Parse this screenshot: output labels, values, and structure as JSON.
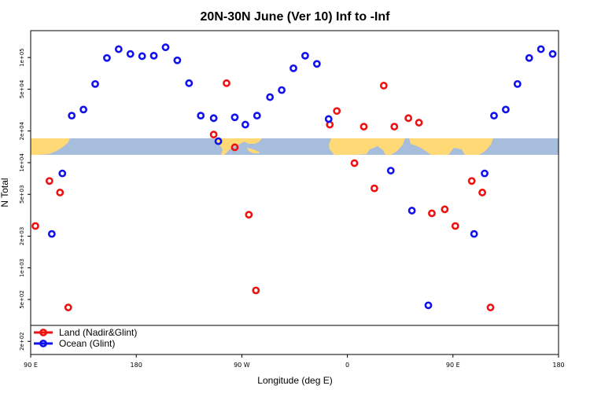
{
  "chart_data": {
    "type": "scatter",
    "title": "20N-30N June (Ver 10)   Inf to -Inf",
    "xlabel": "Longitude (deg E)",
    "ylabel": "N Total",
    "x_scale": "linear",
    "y_scale": "log",
    "xlim": [
      90,
      540
    ],
    "ylim": [
      150,
      180000
    ],
    "x_ticks": [
      {
        "value": 90,
        "label": "90 E"
      },
      {
        "value": 180,
        "label": "180"
      },
      {
        "value": 270,
        "label": "90 W"
      },
      {
        "value": 360,
        "label": "0"
      },
      {
        "value": 450,
        "label": "90 E"
      },
      {
        "value": 540,
        "label": "180"
      }
    ],
    "y_ticks": [
      {
        "value": 200,
        "label": "2e+02"
      },
      {
        "value": 500,
        "label": "5e+02"
      },
      {
        "value": 1000,
        "label": "1e+03"
      },
      {
        "value": 2000,
        "label": "2e+03"
      },
      {
        "value": 5000,
        "label": "5e+03"
      },
      {
        "value": 10000,
        "label": "1e+04"
      },
      {
        "value": 20000,
        "label": "2e+04"
      },
      {
        "value": 50000,
        "label": "5e+04"
      },
      {
        "value": 100000,
        "label": "1e+05"
      }
    ],
    "legend": {
      "placement": "bottom-left"
    },
    "map_strip": {
      "ocean_color": "#a6bddb",
      "land_color": "#fed976"
    },
    "series": [
      {
        "name": "Land (Nadir&Glint)",
        "color": "#ee1111",
        "points": [
          {
            "x": 94,
            "y": 2500
          },
          {
            "x": 106,
            "y": 6700
          },
          {
            "x": 115,
            "y": 5200
          },
          {
            "x": 122,
            "y": 420
          },
          {
            "x": 202,
            "y": 190
          },
          {
            "x": 246,
            "y": 18500
          },
          {
            "x": 257,
            "y": 57000
          },
          {
            "x": 264,
            "y": 14000
          },
          {
            "x": 276,
            "y": 3200
          },
          {
            "x": 282,
            "y": 610
          },
          {
            "x": 345,
            "y": 23000
          },
          {
            "x": 351,
            "y": 31000
          },
          {
            "x": 366,
            "y": 9900
          },
          {
            "x": 374,
            "y": 22000
          },
          {
            "x": 383,
            "y": 5700
          },
          {
            "x": 391,
            "y": 54000
          },
          {
            "x": 400,
            "y": 22000
          },
          {
            "x": 412,
            "y": 26500
          },
          {
            "x": 421,
            "y": 24000
          },
          {
            "x": 432,
            "y": 3300
          },
          {
            "x": 443,
            "y": 3600
          },
          {
            "x": 452,
            "y": 2500
          },
          {
            "x": 466,
            "y": 6700
          },
          {
            "x": 475,
            "y": 5200
          },
          {
            "x": 482,
            "y": 420
          }
        ]
      },
      {
        "name": "Ocean (Glint)",
        "color": "#1111ee",
        "points": [
          {
            "x": 91,
            "y": 230
          },
          {
            "x": 108,
            "y": 2100
          },
          {
            "x": 117,
            "y": 7900
          },
          {
            "x": 125,
            "y": 28000
          },
          {
            "x": 135,
            "y": 32000
          },
          {
            "x": 145,
            "y": 56000
          },
          {
            "x": 155,
            "y": 99000
          },
          {
            "x": 165,
            "y": 120000
          },
          {
            "x": 175,
            "y": 108000
          },
          {
            "x": 185,
            "y": 103000
          },
          {
            "x": 195,
            "y": 104000
          },
          {
            "x": 205,
            "y": 125000
          },
          {
            "x": 215,
            "y": 94000
          },
          {
            "x": 225,
            "y": 57000
          },
          {
            "x": 235,
            "y": 28000
          },
          {
            "x": 246,
            "y": 26500
          },
          {
            "x": 250,
            "y": 16000
          },
          {
            "x": 264,
            "y": 27000
          },
          {
            "x": 273,
            "y": 23000
          },
          {
            "x": 283,
            "y": 28000
          },
          {
            "x": 294,
            "y": 42000
          },
          {
            "x": 304,
            "y": 49000
          },
          {
            "x": 314,
            "y": 79000
          },
          {
            "x": 324,
            "y": 104000
          },
          {
            "x": 334,
            "y": 87000
          },
          {
            "x": 344,
            "y": 26000
          },
          {
            "x": 397,
            "y": 8400
          },
          {
            "x": 415,
            "y": 3500
          },
          {
            "x": 429,
            "y": 440
          },
          {
            "x": 451,
            "y": 230
          },
          {
            "x": 468,
            "y": 2100
          },
          {
            "x": 477,
            "y": 7900
          },
          {
            "x": 485,
            "y": 28000
          },
          {
            "x": 495,
            "y": 32000
          },
          {
            "x": 505,
            "y": 56000
          },
          {
            "x": 515,
            "y": 99000
          },
          {
            "x": 525,
            "y": 120000
          },
          {
            "x": 535,
            "y": 108000
          }
        ]
      }
    ]
  }
}
